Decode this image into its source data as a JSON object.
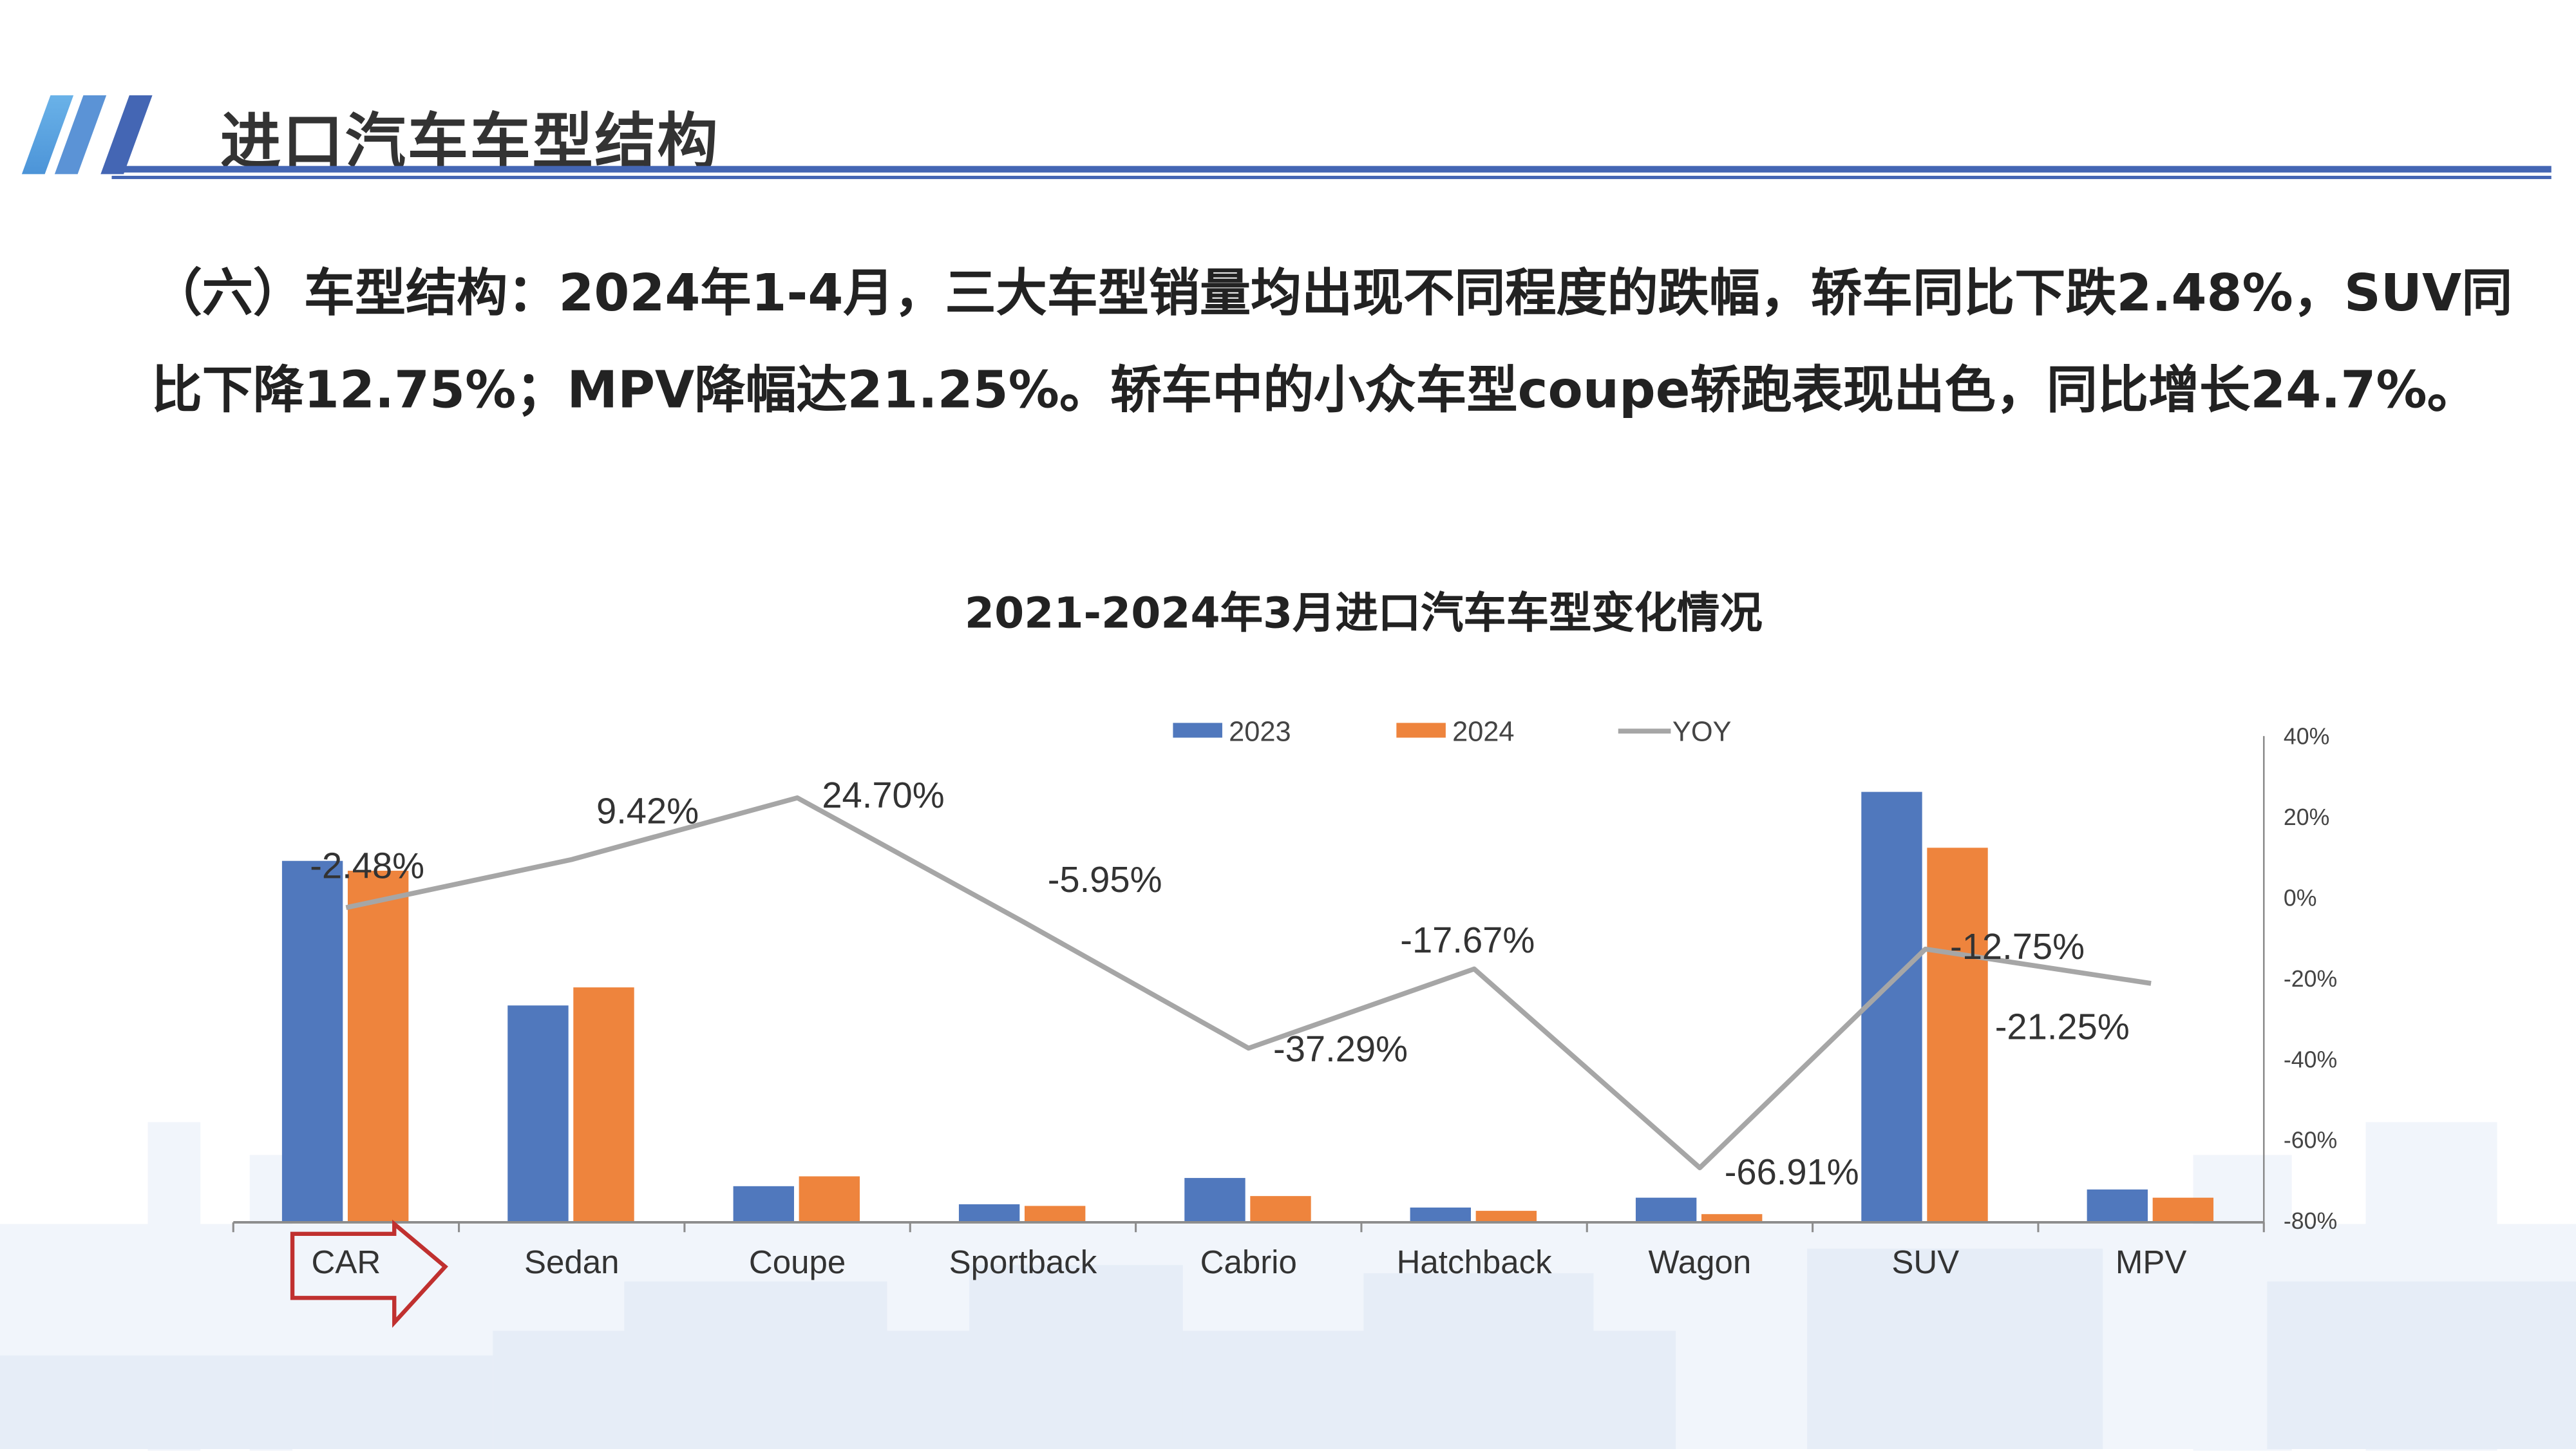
{
  "slide": {
    "title": "进口汽车车型结构",
    "body": "（六）车型结构：2024年1-4月，三大车型销量均出现不同程度的跌幅，轿车同比下跌2.48%，SUV同比下降12.75%；MPV降幅达21.25%。轿车中的小众车型coupe轿跑表现出色，同比增长24.7%。",
    "colors": {
      "accent": "#4466b4",
      "arrow": "#c0302f"
    }
  },
  "chart_data": {
    "type": "bar+line",
    "title": "2021-2024年3月进口汽车车型变化情况",
    "categories": [
      "CAR",
      "Sedan",
      "Coupe",
      "Sportback",
      "Cabrio",
      "Hatchback",
      "Wagon",
      "SUV",
      "MPV"
    ],
    "series": [
      {
        "name": "2023",
        "type": "bar",
        "axis": "left",
        "color": "#5078bd",
        "values": [
          220,
          132,
          22,
          11,
          27,
          9,
          15,
          262,
          20
        ]
      },
      {
        "name": "2024",
        "type": "bar",
        "axis": "left",
        "color": "#ee843d",
        "values": [
          214,
          143,
          28,
          10,
          16,
          7,
          5,
          228,
          15
        ]
      },
      {
        "name": "YOY",
        "type": "line",
        "axis": "right",
        "color": "#a6a6a6",
        "values": [
          -2.48,
          9.42,
          24.7,
          -5.95,
          -37.29,
          -17.67,
          -66.91,
          -12.75,
          -21.25
        ],
        "labels": [
          "-2.48%",
          "9.42%",
          "24.70%",
          "-5.95%",
          "-37.29%",
          "-17.67%",
          "-66.91%",
          "-12.75%",
          "-21.25%"
        ]
      }
    ],
    "right_axis": {
      "ylim": [
        -80,
        40
      ],
      "ticks": [
        "40%",
        "20%",
        "0%",
        "-20%",
        "-40%",
        "-60%",
        "-80%"
      ],
      "tick_values": [
        40,
        20,
        0,
        -20,
        -40,
        -60,
        -80
      ]
    },
    "left_axis": {
      "labels_shown": false
    },
    "legend": {
      "position": "top",
      "entries": [
        "2023",
        "2024",
        "YOY"
      ]
    },
    "grid": false
  }
}
